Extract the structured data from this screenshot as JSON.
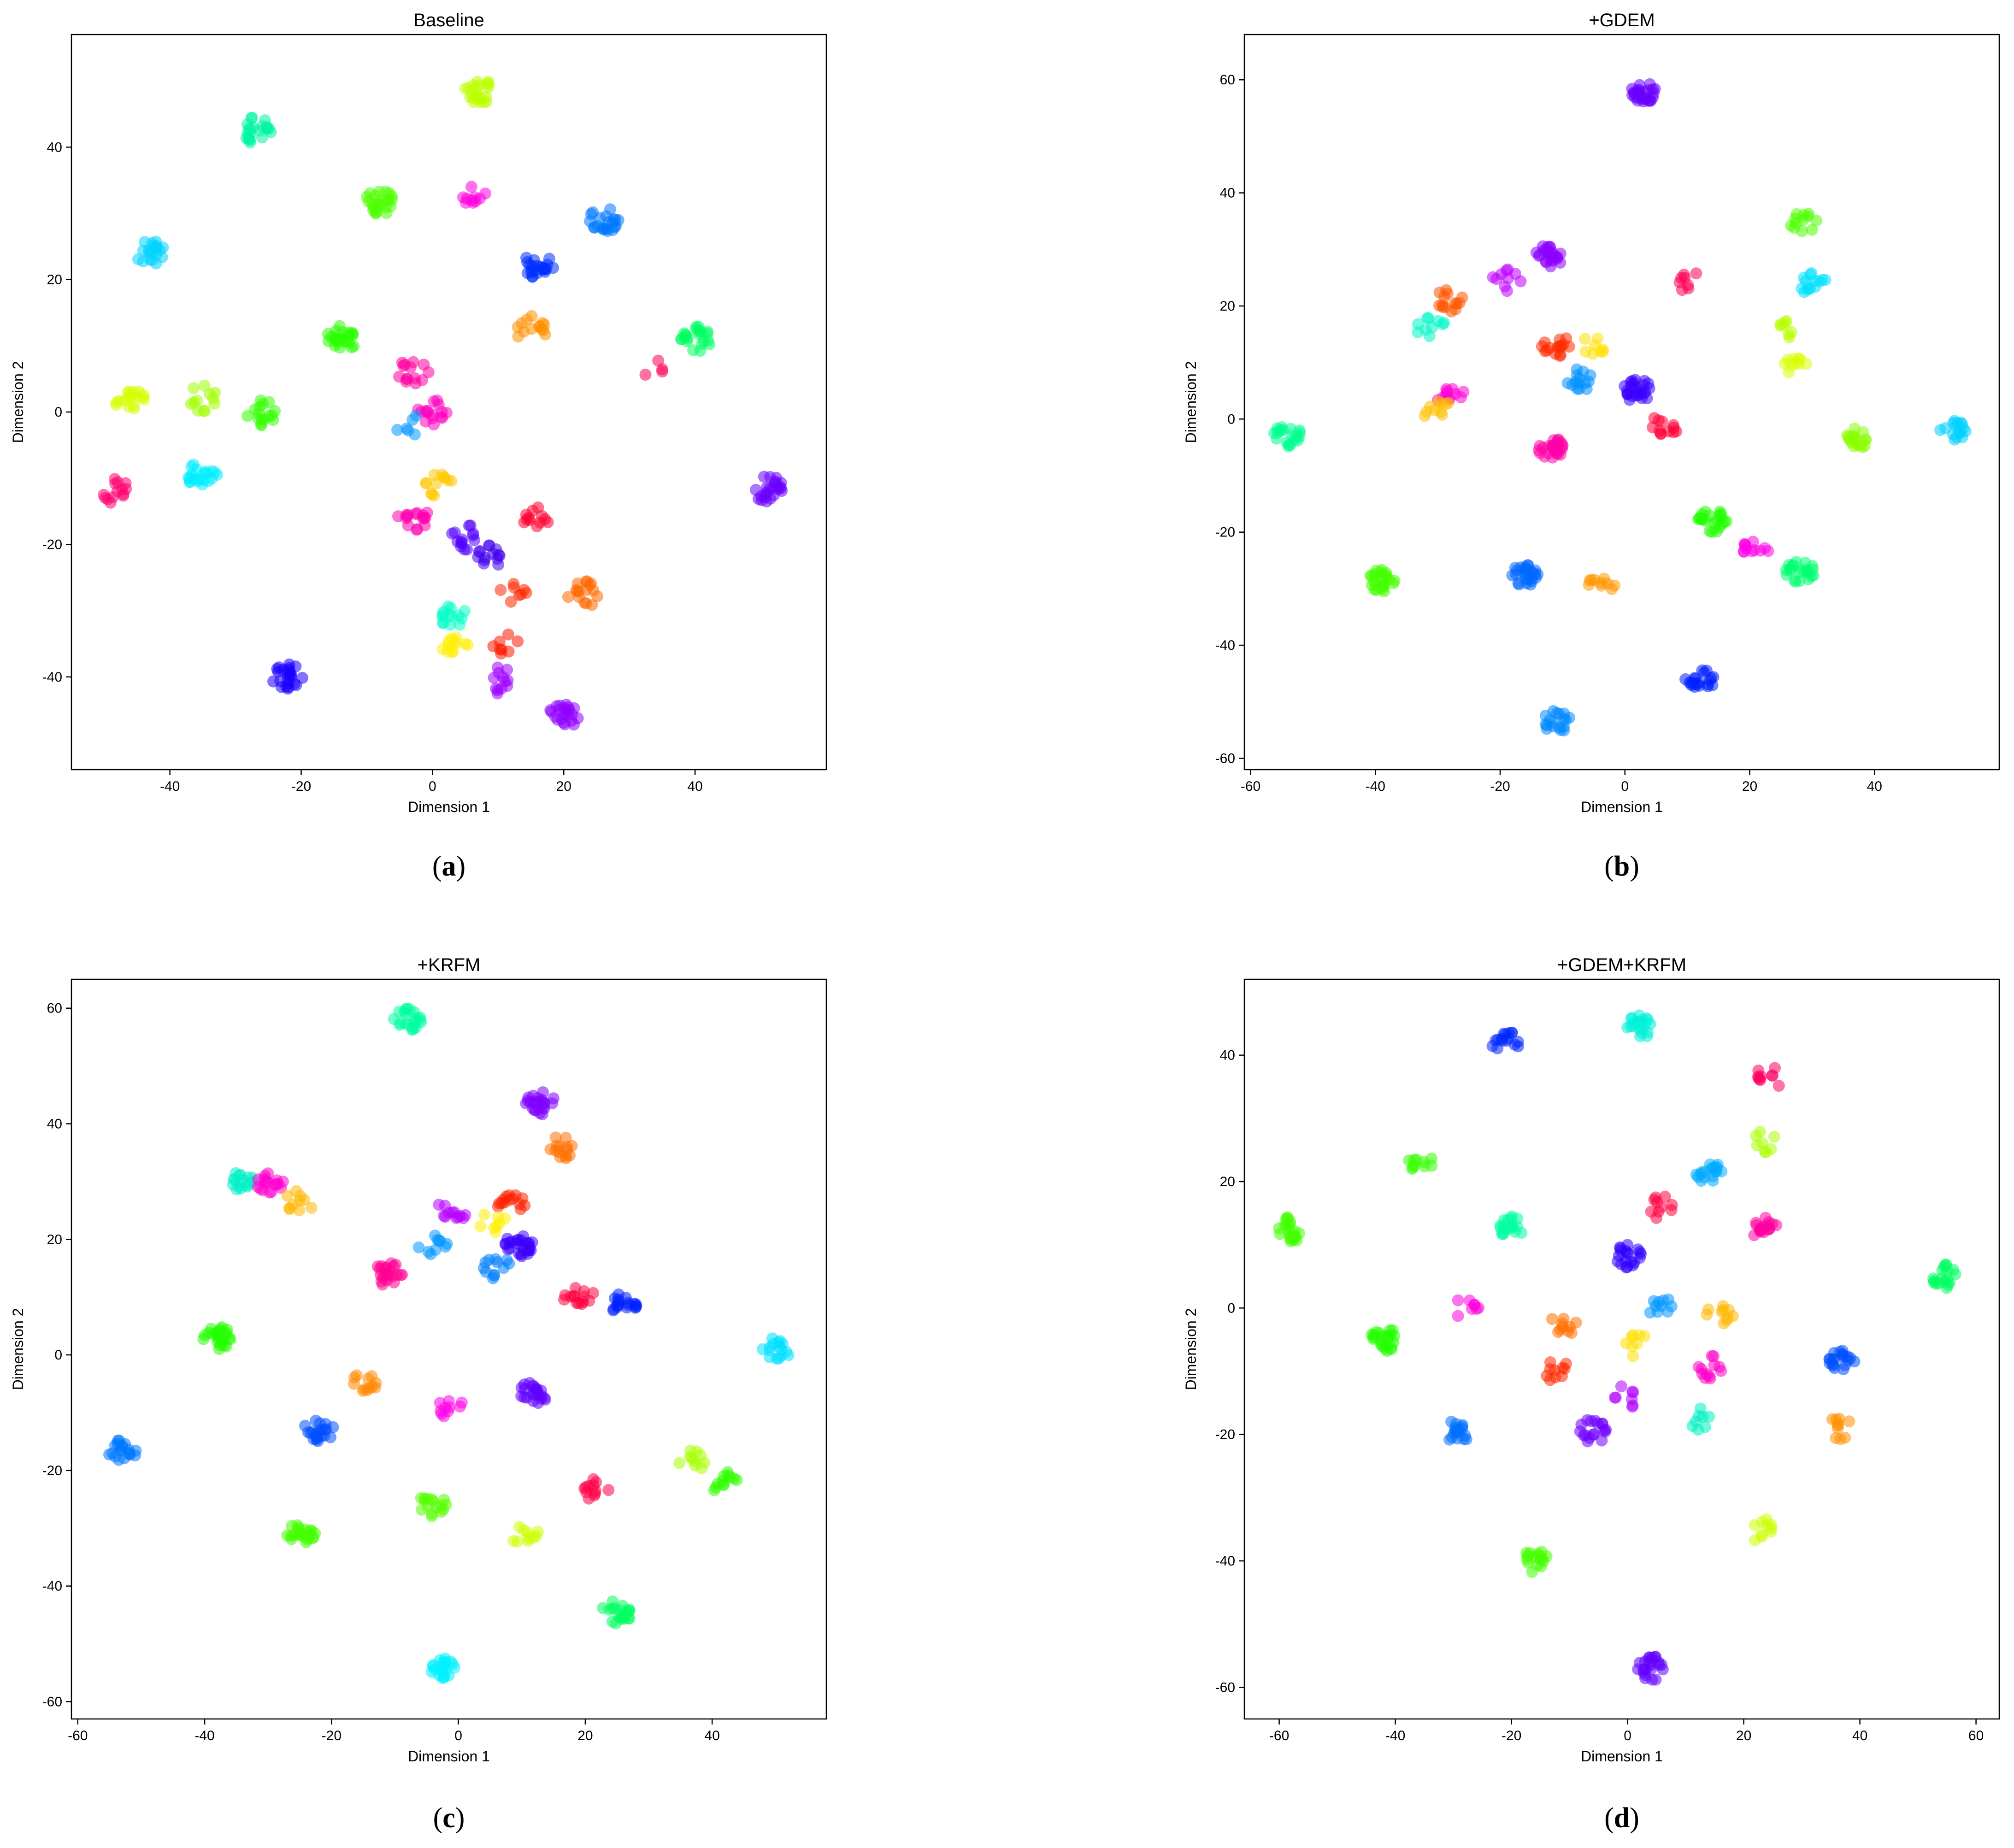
{
  "chart_data": [
    {
      "type": "scatter",
      "title": "Baseline",
      "caption": "(a)",
      "xlabel": "Dimension 1",
      "ylabel": "Dimension 2",
      "xlim": [
        -55,
        60
      ],
      "ylim": [
        -54,
        57
      ],
      "xticks": [
        -40,
        -20,
        0,
        20,
        40
      ],
      "yticks": [
        -40,
        -20,
        0,
        20,
        40
      ],
      "clusters": [
        {
          "x": 7,
          "y": 48.5,
          "color": "#bcff00",
          "n": 22
        },
        {
          "x": -27,
          "y": 42.5,
          "color": "#00f5a0",
          "n": 22
        },
        {
          "x": -8,
          "y": 31.5,
          "color": "#4cff00",
          "n": 24
        },
        {
          "x": 6,
          "y": 33,
          "color": "#ff00e0",
          "n": 10
        },
        {
          "x": 26,
          "y": 29,
          "color": "#0078ff",
          "n": 22
        },
        {
          "x": -43,
          "y": 24,
          "color": "#00d4ff",
          "n": 20
        },
        {
          "x": 16,
          "y": 22,
          "color": "#0030ff",
          "n": 24
        },
        {
          "x": 15,
          "y": 12.5,
          "color": "#ff9000",
          "n": 14
        },
        {
          "x": -14,
          "y": 11,
          "color": "#2aff00",
          "n": 24
        },
        {
          "x": 40,
          "y": 11,
          "color": "#00ff60",
          "n": 22
        },
        {
          "x": -3,
          "y": 6,
          "color": "#ff00a0",
          "n": 14
        },
        {
          "x": 34,
          "y": 6,
          "color": "#ff0050",
          "n": 4
        },
        {
          "x": -46,
          "y": 1.5,
          "color": "#d4ff00",
          "n": 18
        },
        {
          "x": -35,
          "y": 2,
          "color": "#a0ff00",
          "n": 12
        },
        {
          "x": -26,
          "y": 0,
          "color": "#33ff00",
          "n": 16
        },
        {
          "x": 0,
          "y": 0,
          "color": "#ff00c0",
          "n": 16
        },
        {
          "x": -4,
          "y": -2,
          "color": "#0098ff",
          "n": 6
        },
        {
          "x": -35,
          "y": -9.5,
          "color": "#00eeff",
          "n": 22
        },
        {
          "x": -48,
          "y": -12,
          "color": "#ff0070",
          "n": 14
        },
        {
          "x": 51,
          "y": -11.5,
          "color": "#6a00ff",
          "n": 24
        },
        {
          "x": 1,
          "y": -11,
          "color": "#ffc800",
          "n": 12
        },
        {
          "x": -3,
          "y": -16,
          "color": "#ff00b0",
          "n": 16
        },
        {
          "x": 16,
          "y": -16,
          "color": "#ff0030",
          "n": 12
        },
        {
          "x": 5,
          "y": -19,
          "color": "#5000ff",
          "n": 14
        },
        {
          "x": 9,
          "y": -22,
          "color": "#4400ee",
          "n": 14
        },
        {
          "x": 12,
          "y": -27,
          "color": "#ff2800",
          "n": 8
        },
        {
          "x": 23,
          "y": -27.5,
          "color": "#ff6800",
          "n": 16
        },
        {
          "x": 3,
          "y": -31,
          "color": "#00ffc8",
          "n": 14
        },
        {
          "x": 3,
          "y": -35,
          "color": "#ffee00",
          "n": 12
        },
        {
          "x": 11,
          "y": -35,
          "color": "#ff1a00",
          "n": 8
        },
        {
          "x": -22,
          "y": -40,
          "color": "#1a00ff",
          "n": 24
        },
        {
          "x": 10,
          "y": -40.5,
          "color": "#a000ff",
          "n": 12
        },
        {
          "x": 20,
          "y": -46,
          "color": "#9000ff",
          "n": 22
        }
      ]
    },
    {
      "type": "scatter",
      "title": "+GDEM",
      "caption": "(b)",
      "xlabel": "Dimension 1",
      "ylabel": "Dimension 2",
      "xlim": [
        -61,
        60
      ],
      "ylim": [
        -62,
        68
      ],
      "xticks": [
        -60,
        -40,
        -20,
        0,
        20,
        40
      ],
      "yticks": [
        -60,
        -40,
        -20,
        0,
        20,
        40,
        60
      ],
      "clusters": [
        {
          "x": 3,
          "y": 58,
          "color": "#6a00ff",
          "n": 26
        },
        {
          "x": 28.5,
          "y": 35,
          "color": "#4cff00",
          "n": 12
        },
        {
          "x": -12,
          "y": 29,
          "color": "#8c00ff",
          "n": 24
        },
        {
          "x": 30,
          "y": 24,
          "color": "#00e0ff",
          "n": 14
        },
        {
          "x": -19,
          "y": 24.5,
          "color": "#c000ff",
          "n": 10
        },
        {
          "x": 11,
          "y": 24,
          "color": "#ff0055",
          "n": 8
        },
        {
          "x": -28,
          "y": 21,
          "color": "#ff5500",
          "n": 14
        },
        {
          "x": -31,
          "y": 16,
          "color": "#00f5c8",
          "n": 10
        },
        {
          "x": 26,
          "y": 16,
          "color": "#b8ff00",
          "n": 8
        },
        {
          "x": -5,
          "y": 13,
          "color": "#ffe000",
          "n": 8
        },
        {
          "x": -11,
          "y": 13,
          "color": "#ff2a00",
          "n": 16
        },
        {
          "x": 27,
          "y": 10,
          "color": "#d8ff00",
          "n": 10
        },
        {
          "x": -7,
          "y": 7,
          "color": "#0090ff",
          "n": 14
        },
        {
          "x": 2,
          "y": 5,
          "color": "#3a00ff",
          "n": 26
        },
        {
          "x": -28,
          "y": 4,
          "color": "#ff00d8",
          "n": 12
        },
        {
          "x": -30,
          "y": 1.5,
          "color": "#ffc000",
          "n": 10
        },
        {
          "x": 6,
          "y": -1.5,
          "color": "#ff0035",
          "n": 12
        },
        {
          "x": 52.5,
          "y": -2,
          "color": "#00d0ff",
          "n": 16
        },
        {
          "x": -54,
          "y": -3,
          "color": "#00ff90",
          "n": 20
        },
        {
          "x": 37,
          "y": -3.5,
          "color": "#88ff00",
          "n": 18
        },
        {
          "x": -12,
          "y": -5,
          "color": "#ff00a8",
          "n": 26
        },
        {
          "x": 14,
          "y": -18,
          "color": "#22ff00",
          "n": 22
        },
        {
          "x": 21,
          "y": -23,
          "color": "#ff00e8",
          "n": 12
        },
        {
          "x": 28,
          "y": -27,
          "color": "#00ff70",
          "n": 22
        },
        {
          "x": -16,
          "y": -27.5,
          "color": "#0068ff",
          "n": 26
        },
        {
          "x": -39,
          "y": -28.5,
          "color": "#44ff00",
          "n": 24
        },
        {
          "x": -4,
          "y": -29,
          "color": "#ff9800",
          "n": 10
        },
        {
          "x": 12,
          "y": -46,
          "color": "#0020ff",
          "n": 20
        },
        {
          "x": -11,
          "y": -53.5,
          "color": "#0088ff",
          "n": 18
        }
      ]
    },
    {
      "type": "scatter",
      "title": "+KRFM",
      "caption": "(c)",
      "xlabel": "Dimension 1",
      "ylabel": "Dimension 2",
      "xlim": [
        -61,
        58
      ],
      "ylim": [
        -63,
        65
      ],
      "xticks": [
        -60,
        -40,
        -20,
        0,
        20,
        40
      ],
      "yticks": [
        -60,
        -40,
        -20,
        0,
        20,
        40,
        60
      ],
      "clusters": [
        {
          "x": -8,
          "y": 58,
          "color": "#00ffa0",
          "n": 22
        },
        {
          "x": 13,
          "y": 43.5,
          "color": "#8000ff",
          "n": 22
        },
        {
          "x": 16.5,
          "y": 36,
          "color": "#ff7000",
          "n": 14
        },
        {
          "x": -34,
          "y": 30,
          "color": "#00f0c8",
          "n": 16
        },
        {
          "x": -30,
          "y": 30,
          "color": "#ff00d0",
          "n": 18
        },
        {
          "x": -25,
          "y": 26.5,
          "color": "#ffb800",
          "n": 10
        },
        {
          "x": 8.5,
          "y": 26,
          "color": "#ff2000",
          "n": 14
        },
        {
          "x": -1,
          "y": 25,
          "color": "#b800ff",
          "n": 12
        },
        {
          "x": 5.5,
          "y": 23,
          "color": "#ffee00",
          "n": 8
        },
        {
          "x": 9.5,
          "y": 19,
          "color": "#3a00ff",
          "n": 26
        },
        {
          "x": -4,
          "y": 19,
          "color": "#0098ff",
          "n": 10
        },
        {
          "x": 6,
          "y": 15,
          "color": "#0080ff",
          "n": 12
        },
        {
          "x": -11,
          "y": 14,
          "color": "#ff0090",
          "n": 22
        },
        {
          "x": 19,
          "y": 10,
          "color": "#ff0040",
          "n": 14
        },
        {
          "x": 26,
          "y": 9,
          "color": "#0020ff",
          "n": 18
        },
        {
          "x": 50,
          "y": 1,
          "color": "#00e0ff",
          "n": 16
        },
        {
          "x": -38,
          "y": 3,
          "color": "#22ff00",
          "n": 24
        },
        {
          "x": -15,
          "y": -4.5,
          "color": "#ff8800",
          "n": 12
        },
        {
          "x": 12,
          "y": -6.5,
          "color": "#6000ff",
          "n": 22
        },
        {
          "x": -1,
          "y": -9.5,
          "color": "#ff00e8",
          "n": 10
        },
        {
          "x": -53,
          "y": -16.5,
          "color": "#0078ff",
          "n": 20
        },
        {
          "x": -22,
          "y": -13,
          "color": "#0050ff",
          "n": 22
        },
        {
          "x": 37,
          "y": -18,
          "color": "#a8ff00",
          "n": 10
        },
        {
          "x": 42,
          "y": -22,
          "color": "#30ff00",
          "n": 12
        },
        {
          "x": 21.5,
          "y": -23.5,
          "color": "#ff0048",
          "n": 12
        },
        {
          "x": -4,
          "y": -26,
          "color": "#55ff00",
          "n": 16
        },
        {
          "x": 10.5,
          "y": -31,
          "color": "#ccff00",
          "n": 10
        },
        {
          "x": -25,
          "y": -31,
          "color": "#44ff00",
          "n": 22
        },
        {
          "x": 25,
          "y": -44.5,
          "color": "#00ff60",
          "n": 20
        },
        {
          "x": -2,
          "y": -54.5,
          "color": "#00f0ff",
          "n": 22
        }
      ]
    },
    {
      "type": "scatter",
      "title": "+GDEM+KRFM",
      "caption": "(d)",
      "xlabel": "Dimension 1",
      "ylabel": "Dimension 2",
      "xlim": [
        -66,
        64
      ],
      "ylim": [
        -65,
        52
      ],
      "xticks": [
        -60,
        -40,
        -20,
        0,
        20,
        40,
        60
      ],
      "yticks": [
        -60,
        -40,
        -20,
        0,
        20,
        40
      ],
      "clusters": [
        {
          "x": 2,
          "y": 44.5,
          "color": "#00f0d8",
          "n": 20
        },
        {
          "x": -21,
          "y": 42,
          "color": "#0028ff",
          "n": 16
        },
        {
          "x": 24.5,
          "y": 36.5,
          "color": "#ff0060",
          "n": 10
        },
        {
          "x": 23,
          "y": 26.5,
          "color": "#aaff00",
          "n": 8
        },
        {
          "x": -36,
          "y": 23,
          "color": "#33ff00",
          "n": 10
        },
        {
          "x": 14,
          "y": 21.5,
          "color": "#00aaff",
          "n": 18
        },
        {
          "x": 6,
          "y": 16,
          "color": "#ff0040",
          "n": 10
        },
        {
          "x": 23.5,
          "y": 12.5,
          "color": "#ff00a0",
          "n": 18
        },
        {
          "x": -20,
          "y": 12.5,
          "color": "#00ffa0",
          "n": 18
        },
        {
          "x": -58,
          "y": 12.5,
          "color": "#44ff00",
          "n": 22
        },
        {
          "x": 0,
          "y": 8,
          "color": "#3000ff",
          "n": 20
        },
        {
          "x": 54.5,
          "y": 5,
          "color": "#00ff60",
          "n": 18
        },
        {
          "x": -28,
          "y": 0,
          "color": "#ff00e0",
          "n": 8
        },
        {
          "x": 6,
          "y": 0,
          "color": "#0098ff",
          "n": 10
        },
        {
          "x": 16,
          "y": -1,
          "color": "#ffb800",
          "n": 10
        },
        {
          "x": -11,
          "y": -2.5,
          "color": "#ff7000",
          "n": 10
        },
        {
          "x": 2,
          "y": -6,
          "color": "#ffe000",
          "n": 8
        },
        {
          "x": -42,
          "y": -5,
          "color": "#22ff00",
          "n": 22
        },
        {
          "x": 37,
          "y": -8,
          "color": "#0050ff",
          "n": 20
        },
        {
          "x": 14,
          "y": -9.5,
          "color": "#ff00c8",
          "n": 12
        },
        {
          "x": -12,
          "y": -10,
          "color": "#ff2800",
          "n": 10
        },
        {
          "x": 0,
          "y": -14,
          "color": "#b000ff",
          "n": 8
        },
        {
          "x": -6,
          "y": -19.5,
          "color": "#7000ff",
          "n": 18
        },
        {
          "x": -29,
          "y": -19.5,
          "color": "#0070ff",
          "n": 18
        },
        {
          "x": 12,
          "y": -17.5,
          "color": "#00f0c0",
          "n": 8
        },
        {
          "x": 36.5,
          "y": -19,
          "color": "#ff9000",
          "n": 10
        },
        {
          "x": 23,
          "y": -35,
          "color": "#ccff00",
          "n": 10
        },
        {
          "x": -16,
          "y": -40,
          "color": "#44ff00",
          "n": 16
        },
        {
          "x": 4,
          "y": -57,
          "color": "#6000ff",
          "n": 22
        }
      ]
    }
  ]
}
